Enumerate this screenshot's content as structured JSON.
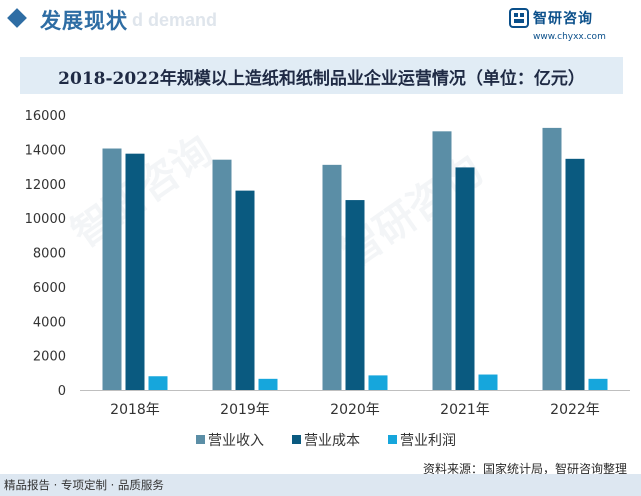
{
  "header": {
    "section_title": "发展现状",
    "section_ghost": "d demand",
    "brand_name": "智研咨询",
    "brand_url": "www.chyxx.com"
  },
  "chart_data": {
    "type": "bar",
    "title": "2018-2022年规模以上造纸和纸制品业企业运营情况（单位：亿元）",
    "categories": [
      "2018年",
      "2019年",
      "2020年",
      "2021年",
      "2022年"
    ],
    "series": [
      {
        "name": "营业收入",
        "color": "#5b8ea6",
        "values": [
          14050,
          13400,
          13100,
          15050,
          15250
        ]
      },
      {
        "name": "营业成本",
        "color": "#0a5a80",
        "values": [
          13750,
          11600,
          11050,
          12950,
          13450
        ]
      },
      {
        "name": "营业利润",
        "color": "#16a6dc",
        "values": [
          800,
          650,
          850,
          900,
          650
        ]
      }
    ],
    "y_ticks": [
      "0",
      "2000",
      "4000",
      "6000",
      "8000",
      "10000",
      "12000",
      "14000",
      "16000"
    ],
    "ylim": [
      0,
      16000
    ],
    "grid": false,
    "legend_position": "bottom"
  },
  "source": "资料来源：国家统计局，智研咨询整理",
  "footer": "精品报告 · 专项定制 · 品质服务",
  "watermark": "智研咨询"
}
